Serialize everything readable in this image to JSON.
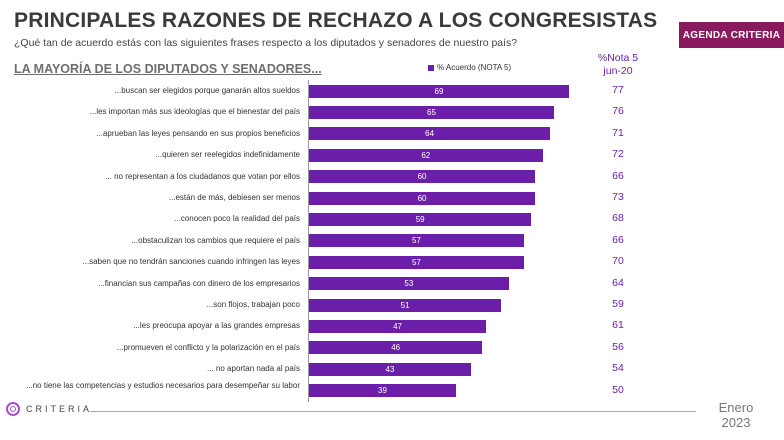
{
  "header": {
    "title": "PRINCIPALES RAZONES DE RECHAZO A LOS CONGRESISTAS",
    "subtitle": "¿Qué tan de acuerdo estás con las siguientes frases respecto a los diputados y senadores de nuestro país?",
    "badge": "AGENDA CRITERIA"
  },
  "section_label": "LA MAYORÍA DE LOS DIPUTADOS Y SENADORES...",
  "chart_data": {
    "type": "bar",
    "orientation": "horizontal",
    "legend": "% Acuerdo (NOTA 5)",
    "side_column": {
      "header_line1": "%Nota 5",
      "header_line2": "jun-20"
    },
    "colors": {
      "bar": "#6b1ea8",
      "bar_label": "#ffffff",
      "side_values": "#6b1ea8"
    },
    "categories": [
      "...buscan ser elegidos porque ganarán altos sueldos",
      "...les importan más sus ideologías que el bienestar del país",
      "...aprueban las leyes pensando en sus propios beneficios",
      "...quieren ser reelegidos indefinidamente",
      "... no representan a los ciudadanos que votan por ellos",
      "...están de más, debiesen ser menos",
      "...conocen poco la realidad del país",
      "...obstaculizan los cambios que requiere el país",
      "...saben que no tendrán sanciones cuando infringen las leyes",
      "...financian sus campañas con dinero de los empresarios",
      "...son flojos, trabajan poco",
      "...les preocupa apoyar a las grandes empresas",
      "...promueven el conflicto y la polarización en el país",
      "... no aportan nada al país",
      "...no tiene las competencias y estudios necesarios para desempeñar su labor"
    ],
    "values": [
      69,
      65,
      64,
      62,
      60,
      60,
      59,
      57,
      57,
      53,
      51,
      47,
      46,
      43,
      39
    ],
    "jun20": [
      77,
      76,
      71,
      72,
      66,
      73,
      68,
      66,
      70,
      64,
      59,
      61,
      56,
      54,
      50
    ]
  },
  "footer": {
    "brand": "CRITERIA",
    "date_line1": "Enero",
    "date_line2": "2023"
  }
}
